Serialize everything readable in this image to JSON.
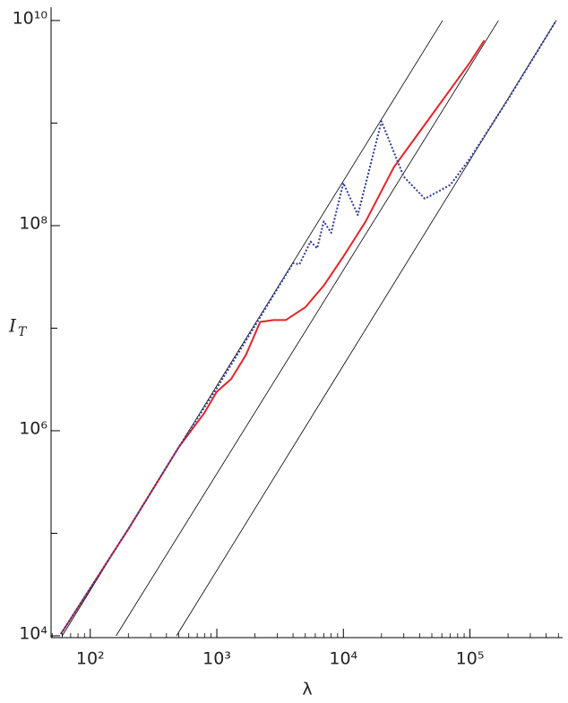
{
  "chart_data": {
    "type": "line",
    "xlabel": "λ",
    "ylabel": "I",
    "ylabel_sub": "T",
    "log_x": true,
    "log_y": true,
    "xlim": [
      49,
      540000
    ],
    "ylim": [
      9600,
      13500000000
    ],
    "xticks": [
      {
        "value": 100,
        "label": "10²"
      },
      {
        "value": 1000,
        "label": "10³"
      },
      {
        "value": 10000,
        "label": "10⁴"
      },
      {
        "value": 100000,
        "label": "10⁵"
      }
    ],
    "yticks": [
      {
        "value": 10000,
        "label": "10⁴"
      },
      {
        "value": 1000000,
        "label": "10⁶"
      },
      {
        "value": 100000000,
        "label": "10⁸"
      },
      {
        "value": 10000000000,
        "label": "10¹⁰"
      }
    ],
    "yminor": [
      100000,
      10000000,
      1000000000
    ],
    "series": [
      {
        "color": "#000000",
        "style": "solid",
        "width": 0.8,
        "x": [
          60,
          60800
        ],
        "values": [
          10000,
          10000000000
        ]
      },
      {
        "color": "#000000",
        "style": "solid",
        "width": 0.8,
        "x": [
          160,
          168000
        ],
        "values": [
          10000,
          10000000000
        ]
      },
      {
        "color": "#000000",
        "style": "solid",
        "width": 0.8,
        "x": [
          480,
          480000
        ],
        "values": [
          10000,
          10000000000
        ]
      },
      {
        "color": "#e0262a",
        "style": "solid",
        "width": 2,
        "x": [
          58.5,
          200,
          500,
          800,
          1000,
          1300,
          1700,
          2200,
          2800,
          3500,
          5000,
          7000,
          10000,
          15000,
          25000,
          50000,
          100000,
          130000
        ],
        "values": [
          10400,
          110000,
          690000,
          1500000,
          2400000,
          3200000,
          5500000,
          11500000,
          12000000,
          12000000,
          16000000,
          26000000,
          50000000,
          110000000,
          370000000,
          1200000000,
          3900000000,
          6400000000
        ]
      },
      {
        "color": "#2b3a9a",
        "style": "dotted",
        "width": 2,
        "x": [
          58.5,
          200,
          500,
          1000,
          2000,
          3000,
          4000,
          4500,
          5500,
          6200,
          7000,
          8000,
          10000,
          13000,
          20000,
          30000,
          44000,
          70000,
          100000,
          200000,
          480000
        ],
        "values": [
          10400,
          110000,
          690000,
          2600000,
          10500000,
          24000000,
          43000000,
          42000000,
          70000000,
          60000000,
          110000000,
          85000000,
          260000000,
          127000000,
          1040000000,
          300000000,
          183000000,
          250000000,
          450000000,
          1700000000,
          10000000000
        ]
      }
    ]
  }
}
